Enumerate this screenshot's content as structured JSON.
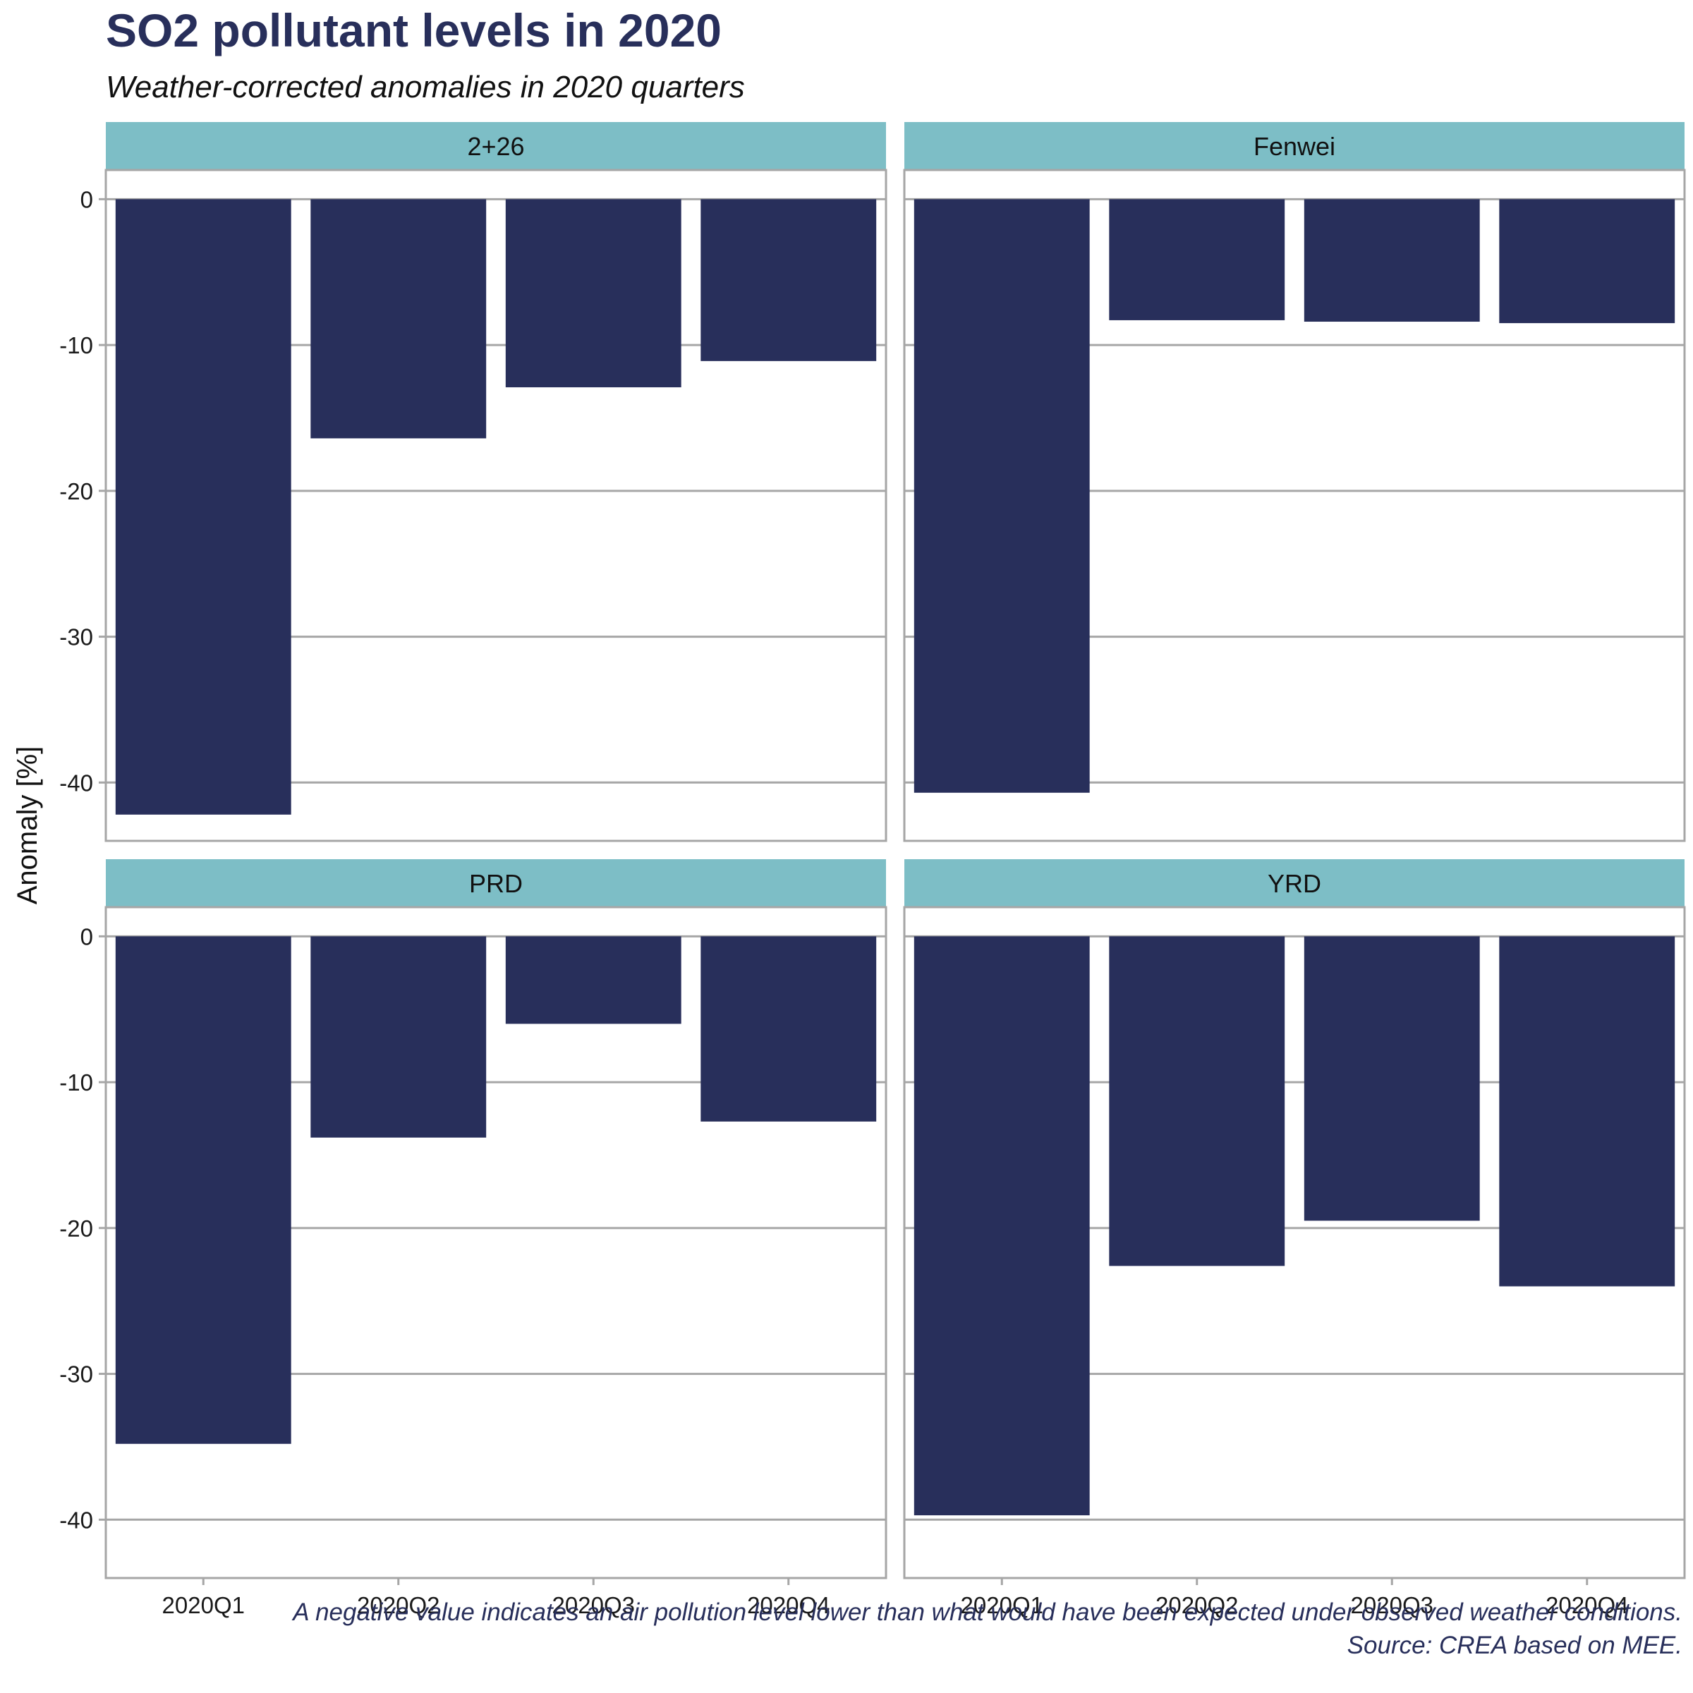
{
  "chart_data": {
    "type": "bar",
    "title": "SO2 pollutant levels in 2020",
    "subtitle": "Weather-corrected anomalies in 2020 quarters",
    "ylabel": "Anomaly [%]",
    "xlabel": "",
    "ylim": [
      -44,
      2
    ],
    "y_ticks": [
      0,
      -10,
      -20,
      -30,
      -40
    ],
    "grid": true,
    "categories": [
      "2020Q1",
      "2020Q2",
      "2020Q3",
      "2020Q4"
    ],
    "panels": [
      {
        "name": "2+26",
        "values": [
          -42.2,
          -16.4,
          -12.9,
          -11.1
        ]
      },
      {
        "name": "Fenwei",
        "values": [
          -40.7,
          -8.3,
          -8.4,
          -8.5
        ]
      },
      {
        "name": "PRD",
        "values": [
          -34.8,
          -13.8,
          -6.0,
          -12.7
        ]
      },
      {
        "name": "YRD",
        "values": [
          -39.7,
          -22.6,
          -19.5,
          -24.0
        ]
      }
    ],
    "caption": [
      "A negative value indicates an air pollution level lower than what would have been expected under observed weather conditions.",
      "Source: CREA based on MEE."
    ]
  },
  "colors": {
    "bar": "#282f5b",
    "strip": "#7dbec6",
    "text_accent": "#282f5b",
    "grid": "#a6a6a6",
    "panel_border": "#a6a6a6"
  }
}
